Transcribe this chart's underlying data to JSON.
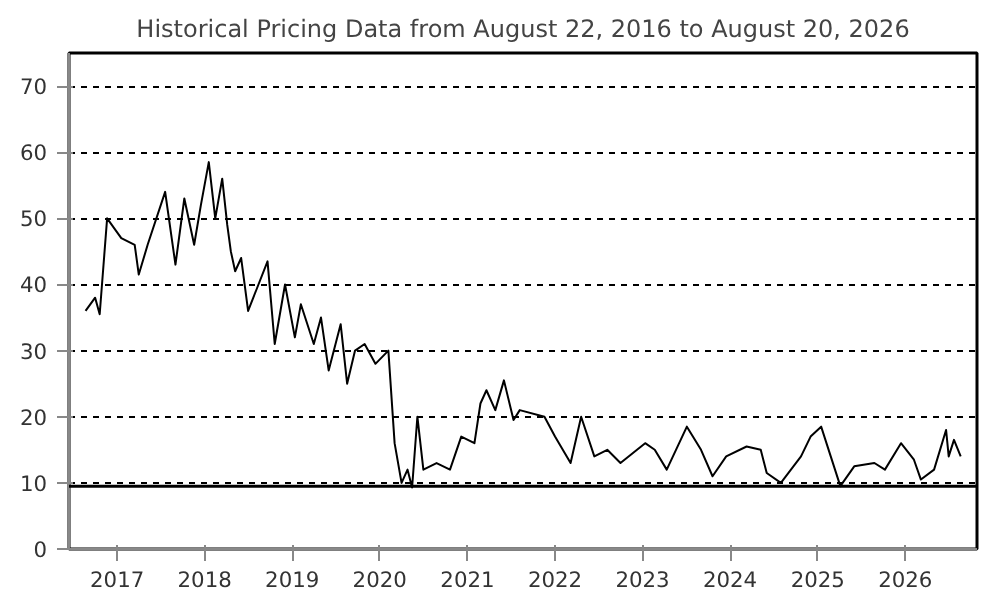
{
  "chart_data": {
    "type": "line",
    "title": "Historical Pricing Data from August 22, 2016 to August 20, 2026",
    "x": [
      "2016-08-22",
      "2016-10-01",
      "2016-10-20",
      "2016-11-20",
      "2017-01-18",
      "2017-03-15",
      "2017-04-01",
      "2017-05-08",
      "2017-07-20",
      "2017-09-01",
      "2017-10-08",
      "2017-11-18",
      "2017-12-16",
      "2018-01-18",
      "2018-02-14",
      "2018-03-15",
      "2018-04-05",
      "2018-04-20",
      "2018-05-08",
      "2018-06-02",
      "2018-07-01",
      "2018-09-20",
      "2018-10-20",
      "2018-12-02",
      "2019-01-12",
      "2019-02-06",
      "2019-04-01",
      "2019-05-01",
      "2019-06-02",
      "2019-07-22",
      "2019-08-18",
      "2019-09-20",
      "2019-10-30",
      "2019-12-14",
      "2020-02-06",
      "2020-03-03",
      "2020-04-01",
      "2020-04-26",
      "2020-05-15",
      "2020-06-06",
      "2020-07-01",
      "2020-08-25",
      "2020-10-20",
      "2020-12-06",
      "2021-01-30",
      "2021-02-24",
      "2021-03-21",
      "2021-04-27",
      "2021-06-02",
      "2021-07-12",
      "2021-08-07",
      "2021-11-18",
      "2022-01-01",
      "2022-03-07",
      "2022-04-20",
      "2022-06-14",
      "2022-08-07",
      "2022-10-01",
      "2023-01-12",
      "2023-02-21",
      "2023-04-12",
      "2023-07-05",
      "2023-09-02",
      "2023-10-20",
      "2023-12-16",
      "2024-03-10",
      "2024-05-08",
      "2024-06-02",
      "2024-07-31",
      "2024-10-23",
      "2024-12-02",
      "2025-01-15",
      "2025-02-24",
      "2025-04-05",
      "2025-06-02",
      "2025-08-25",
      "2025-10-08",
      "2025-12-14",
      "2026-02-06",
      "2026-03-07",
      "2026-05-01",
      "2026-06-20",
      "2026-07-01",
      "2026-07-23",
      "2026-08-20"
    ],
    "series": [
      {
        "color": "#000000",
        "values": [
          36,
          38,
          35.5,
          50,
          47,
          46,
          41.5,
          46,
          54,
          43,
          53,
          46,
          52,
          58.5,
          50,
          56,
          49,
          45,
          42,
          44,
          36,
          43.5,
          31,
          40,
          32,
          37,
          31,
          35,
          27,
          34,
          25,
          30,
          31,
          28,
          30,
          16,
          10,
          12,
          9.3,
          20,
          12,
          13,
          12,
          17,
          16,
          22,
          24,
          21,
          25.5,
          19.5,
          21,
          20,
          17,
          13,
          20,
          14,
          15,
          13,
          16,
          15,
          12,
          18.5,
          15,
          11,
          14,
          15.5,
          15,
          11.5,
          10,
          14,
          17,
          18.5,
          14,
          9.5,
          12.5,
          13,
          12,
          16,
          13.5,
          10.5,
          12,
          18,
          14,
          16.5,
          14
        ]
      }
    ],
    "xlim": [
      "2016-06-14",
      "2026-10-27"
    ],
    "xticks": [
      "2017",
      "2018",
      "2019",
      "2020",
      "2021",
      "2022",
      "2023",
      "2024",
      "2025",
      "2026"
    ],
    "ylim": [
      0,
      75
    ],
    "yticks": [
      0,
      10,
      20,
      30,
      40,
      50,
      60,
      70
    ],
    "grid": "y",
    "line_style": "solid",
    "ref_lines": [
      {
        "axis": "y",
        "value": 9.5,
        "color": "#000000",
        "line_style": "solid"
      }
    ]
  }
}
